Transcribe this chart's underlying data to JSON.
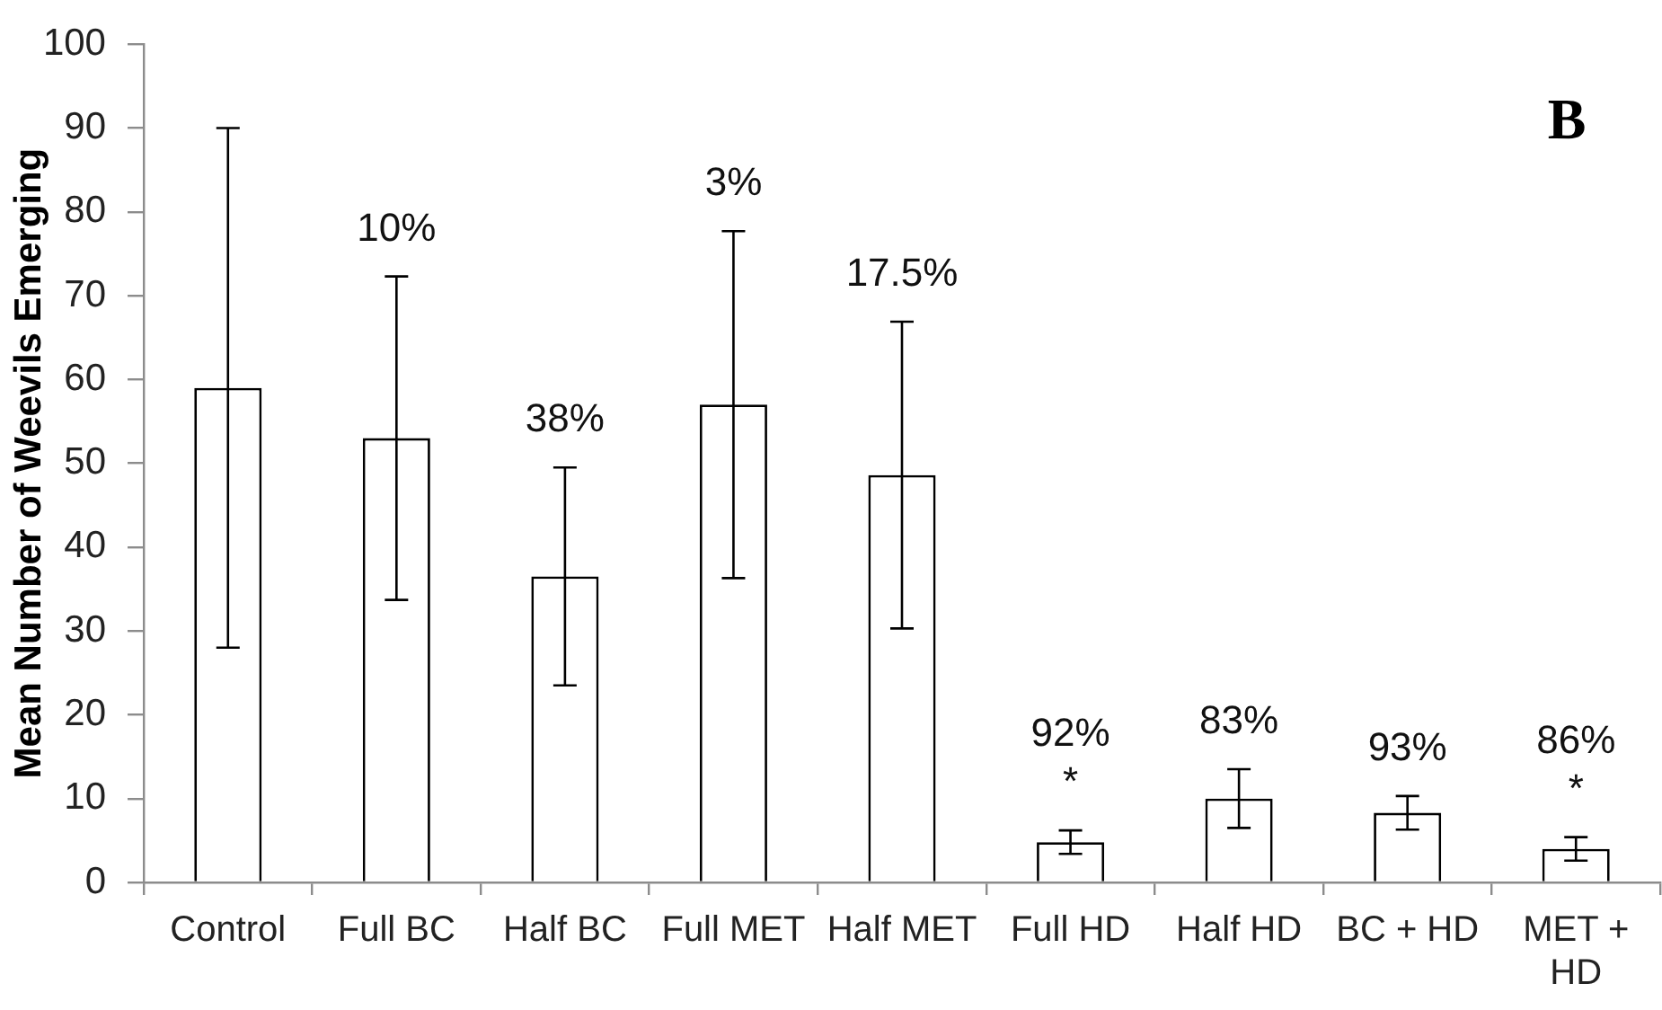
{
  "chart_data": {
    "type": "bar",
    "ylabel": "Mean Number of Weevils Emerging",
    "categories": [
      "Control",
      "Full BC",
      "Half BC",
      "Full MET",
      "Half MET",
      "Full HD",
      "Half HD",
      "BC + HD",
      "MET + HD"
    ],
    "values": [
      59,
      53,
      36.5,
      57,
      48.6,
      4.8,
      10,
      8.3,
      4
    ],
    "errors": [
      31,
      19.3,
      13,
      20.7,
      18.3,
      1.4,
      3.5,
      2,
      1.4
    ],
    "color": "#ffffff",
    "ylim": [
      0,
      100
    ],
    "yticks": [
      0,
      10,
      20,
      30,
      40,
      50,
      60,
      70,
      80,
      90,
      100
    ],
    "grid": false,
    "legend": false,
    "annotations": [
      {
        "text": "10%",
        "x": "Full BC",
        "y": 72.3
      },
      {
        "text": "38%",
        "x": "Half BC",
        "y": 49.5
      },
      {
        "text": "3%",
        "x": "Full MET",
        "y": 77.7
      },
      {
        "text": "17.5%",
        "x": "Half MET",
        "y": 66.9
      },
      {
        "text": "92%",
        "x": "Full HD",
        "y": 6.2
      },
      {
        "text": "*",
        "x": "Full HD",
        "y": 6.2
      },
      {
        "text": "83%",
        "x": "Half HD",
        "y": 13.5
      },
      {
        "text": "93%",
        "x": "BC + HD",
        "y": 10.3
      },
      {
        "text": "86%",
        "x": "MET + HD",
        "y": 5.4
      },
      {
        "text": "*",
        "x": "MET + HD",
        "y": 5.4
      },
      "B"
    ]
  }
}
